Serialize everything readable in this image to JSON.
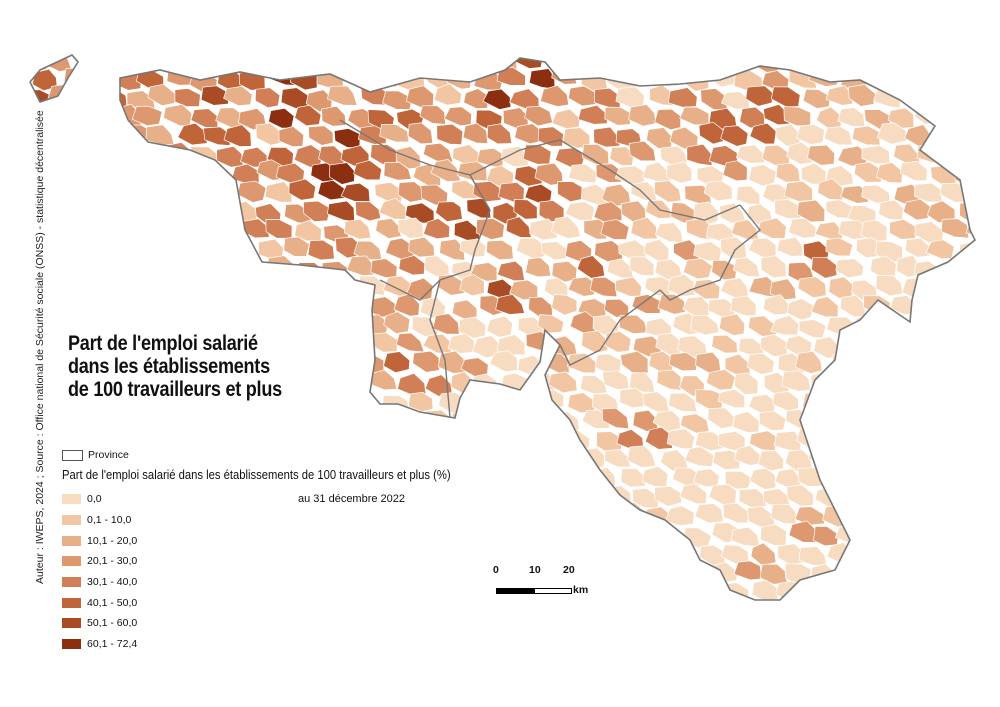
{
  "title": {
    "line1": "Part de l'emploi salarié",
    "line2": "dans les établissements",
    "line3": "de 100 travailleurs et plus"
  },
  "credit": "Auteur : IWEPS, 2024 ; Source : Office national de Sécurité sociale (ONSS) - statistique décentralisée",
  "legend": {
    "province_label": "Province",
    "title": "Part de l'emploi salarié dans les établissements de 100 travailleurs et plus (%)",
    "subtitle": "au 31 décembre 2022",
    "classes": [
      {
        "label": "0,0",
        "color": "#f7dcc2"
      },
      {
        "label": "0,1 - 10,0",
        "color": "#f2c6a3"
      },
      {
        "label": "10,1 - 20,0",
        "color": "#e8b089"
      },
      {
        "label": "20,1 - 30,0",
        "color": "#dd9870"
      },
      {
        "label": "30,1 - 40,0",
        "color": "#d17f57"
      },
      {
        "label": "40,1 - 50,0",
        "color": "#c0643a"
      },
      {
        "label": "50,1 - 60,0",
        "color": "#a94b24"
      },
      {
        "label": "60,1 - 72,4",
        "color": "#8b2f10"
      }
    ]
  },
  "scale": {
    "ticks": [
      "0",
      "10",
      "20"
    ],
    "unit": "km"
  },
  "colors": {
    "province_border": "#777777",
    "municipality_border": "#ffffff"
  }
}
